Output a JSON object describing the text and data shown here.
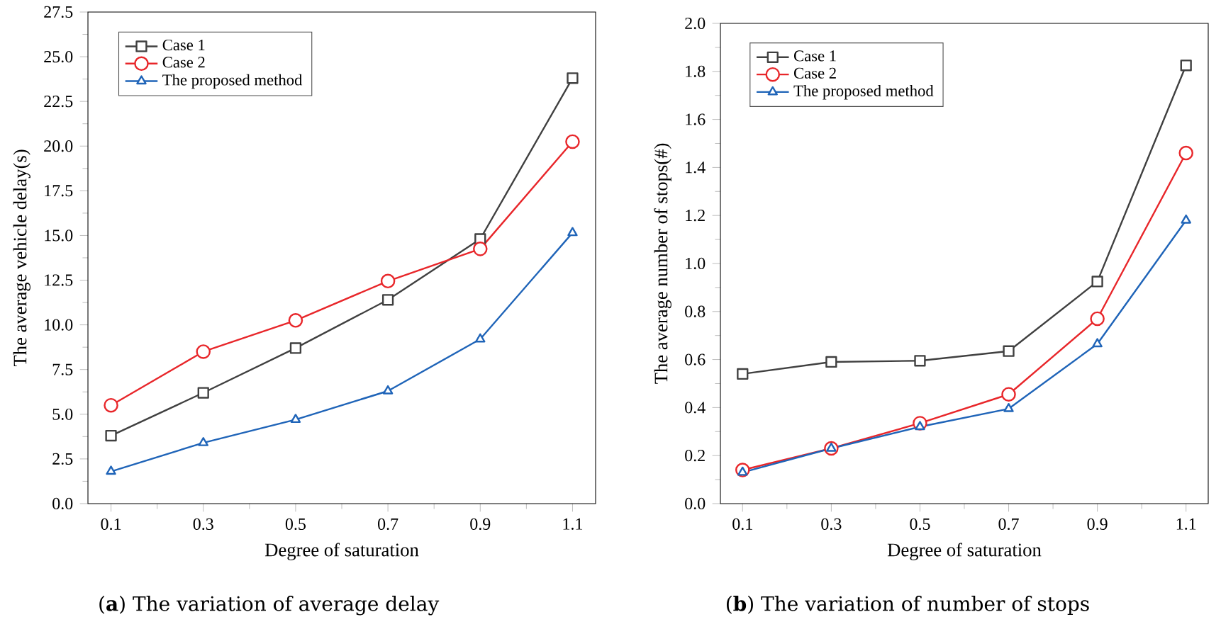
{
  "chart_data": [
    {
      "type": "line",
      "xlabel": "Degree of saturation",
      "ylabel": "The average vehicle delay(s)",
      "annotations": [
        "(**a**) The variation of average delay"
      ],
      "x": [
        0.1,
        0.3,
        0.5,
        0.7,
        0.9,
        1.1
      ],
      "xlim": [
        0.05,
        1.15
      ],
      "xticks": [
        0.1,
        0.3,
        0.5,
        0.7,
        0.9,
        1.1
      ],
      "ylim": [
        0,
        27.5
      ],
      "yticks": [
        {
          "value": 0,
          "label": "0.0"
        },
        2.5,
        {
          "value": 5,
          "label": "5.0"
        },
        7.5,
        {
          "value": 10,
          "label": "10.0"
        },
        12.5,
        {
          "value": 15,
          "label": "15.0"
        },
        17.5,
        {
          "value": 20,
          "label": "20.0"
        },
        22.5,
        {
          "value": 25,
          "label": "25.0"
        },
        27.5
      ],
      "legend": "top left",
      "grid": false,
      "series": [
        {
          "name": "Case 1",
          "color": "#404040",
          "marker": "square",
          "values": [
            3.8,
            6.2,
            8.7,
            11.4,
            14.8,
            23.8
          ]
        },
        {
          "name": "Case 2",
          "color": "#e8262a",
          "marker": "circle",
          "values": [
            5.5,
            8.5,
            10.25,
            12.45,
            14.25,
            20.25
          ]
        },
        {
          "name": "The proposed method",
          "color": "#1f64b8",
          "marker": "triangle",
          "values": [
            1.8,
            3.4,
            4.7,
            6.3,
            9.2,
            15.15
          ]
        }
      ]
    },
    {
      "type": "line",
      "xlabel": "Degree of saturation",
      "ylabel": "The average number of stops(#)",
      "annotations": [
        "(**b**) The variation of number of stops"
      ],
      "x": [
        0.1,
        0.3,
        0.5,
        0.7,
        0.9,
        1.1
      ],
      "xlim": [
        0.05,
        1.15
      ],
      "xticks": [
        0.1,
        0.3,
        0.5,
        0.7,
        0.9,
        1.1
      ],
      "ylim": [
        0,
        2.0
      ],
      "yticks": [
        {
          "value": 0,
          "label": "0.0"
        },
        0.2,
        0.4,
        0.6,
        0.8,
        {
          "value": 1,
          "label": "1.0"
        },
        1.2,
        1.4,
        1.6,
        1.8,
        {
          "value": 2,
          "label": "2.0"
        }
      ],
      "legend": "top left",
      "grid": false,
      "series": [
        {
          "name": "Case 1",
          "color": "#404040",
          "marker": "square",
          "values": [
            0.54,
            0.59,
            0.595,
            0.635,
            0.925,
            1.825
          ]
        },
        {
          "name": "Case 2",
          "color": "#e8262a",
          "marker": "circle",
          "values": [
            0.14,
            0.23,
            0.335,
            0.455,
            0.77,
            1.46
          ]
        },
        {
          "name": "The proposed method",
          "color": "#1f64b8",
          "marker": "triangle",
          "values": [
            0.13,
            0.23,
            0.32,
            0.395,
            0.665,
            1.18
          ]
        }
      ]
    }
  ]
}
